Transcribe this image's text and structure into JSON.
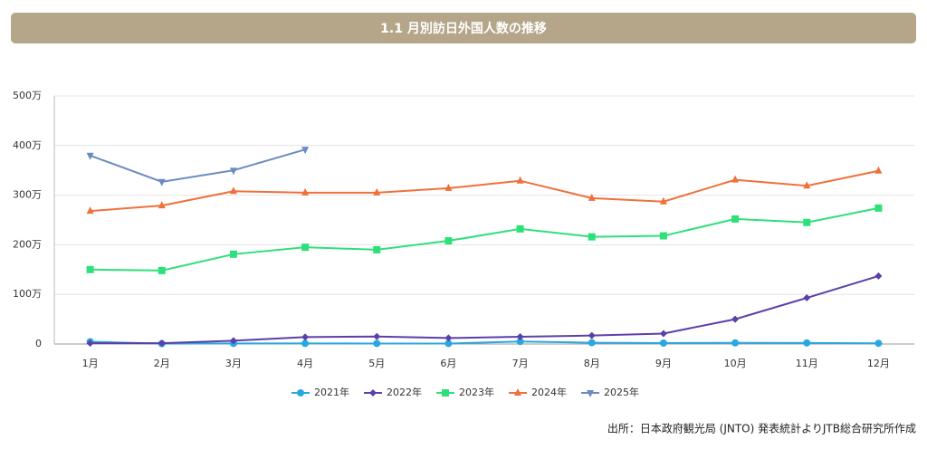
{
  "chart_data": {
    "type": "line",
    "title": "1.1 月別訪日外国人数の推移",
    "source": "出所：日本政府観光局 (JNTO) 発表統計よりJTB総合研究所作成",
    "categories": [
      "1月",
      "2月",
      "3月",
      "4月",
      "5月",
      "6月",
      "7月",
      "8月",
      "9月",
      "10月",
      "11月",
      "12月"
    ],
    "ylim": [
      0,
      500
    ],
    "yticks": [
      0,
      {
        "value": 100,
        "label": "100万"
      },
      {
        "value": 200,
        "label": "200万"
      },
      {
        "value": 300,
        "label": "300万"
      },
      {
        "value": 400,
        "label": "400万"
      },
      {
        "value": 500,
        "label": "500万"
      }
    ],
    "grid": true,
    "legend": "bottom",
    "series": [
      {
        "name": "2021年",
        "color": "#29a8e0",
        "marker": "circle",
        "values": [
          4.6,
          0.7,
          1.2,
          1.1,
          1.0,
          1.0,
          5.1,
          2.6,
          1.8,
          2.2,
          2.1,
          1.4
        ]
      },
      {
        "name": "2022年",
        "color": "#5c3fa8",
        "marker": "diamond",
        "values": [
          1.7,
          1.7,
          6.6,
          14,
          15,
          12,
          14.5,
          17,
          21,
          50,
          93,
          137
        ]
      },
      {
        "name": "2023年",
        "color": "#2ee07a",
        "marker": "square",
        "values": [
          150,
          148,
          181,
          195,
          190,
          208,
          232,
          216,
          218,
          252,
          245,
          274
        ]
      },
      {
        "name": "2024年",
        "color": "#f0703c",
        "marker": "triangle-up",
        "values": [
          268,
          279,
          308,
          305,
          305,
          314,
          329,
          294,
          287,
          331,
          319,
          349
        ]
      },
      {
        "name": "2025年",
        "color": "#6a8bbf",
        "marker": "triangle-down",
        "values": [
          380,
          327,
          350,
          392,
          null,
          null,
          null,
          null,
          null,
          null,
          null,
          null
        ]
      }
    ]
  }
}
